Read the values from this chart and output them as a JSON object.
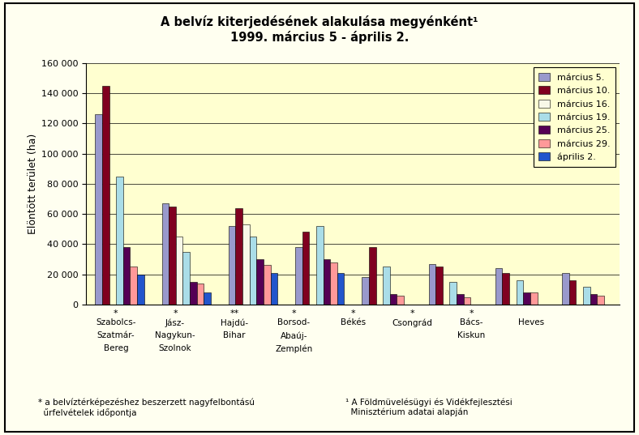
{
  "title_line1": "A belvíz kiterjedésének alakulása megyénként¹",
  "title_line2": "1999. március 5 - április 2.",
  "ylabel": "Elöntött terület (ha)",
  "background_color": "#FFFFF0",
  "plot_bg_color": "#FFFFD0",
  "categories": [
    "Szabolcs-\nSzatmár-\nBereg",
    "Jász-\nNagykun-\nSzolnok",
    "Hajdú-\nBihar",
    "Borsod-\nAbaúj-\nZemplén",
    "Békés",
    "Csongrád",
    "Bács-\nKiskun",
    "Heves"
  ],
  "stars": [
    "*",
    "*",
    "**",
    "*",
    "*",
    "*",
    "*",
    ""
  ],
  "series": [
    {
      "label": "március 5.",
      "color": "#9999CC",
      "values": [
        126000,
        67000,
        52000,
        38000,
        18000,
        27000,
        24000,
        21000
      ]
    },
    {
      "label": "március 10.",
      "color": "#800020",
      "values": [
        145000,
        65000,
        64000,
        48000,
        38000,
        25000,
        21000,
        16000
      ]
    },
    {
      "label": "március 16.",
      "color": "#F8F8E8",
      "values": [
        0,
        45000,
        53000,
        0,
        0,
        0,
        0,
        0
      ]
    },
    {
      "label": "március 19.",
      "color": "#AADDE8",
      "values": [
        85000,
        35000,
        45000,
        52000,
        25000,
        15000,
        16000,
        12000
      ]
    },
    {
      "label": "március 25.",
      "color": "#550055",
      "values": [
        38000,
        15000,
        30000,
        30000,
        7000,
        7000,
        8000,
        7000
      ]
    },
    {
      "label": "március 29.",
      "color": "#FF9999",
      "values": [
        25000,
        14000,
        26000,
        28000,
        6000,
        5000,
        8000,
        6000
      ]
    },
    {
      "label": "április 2.",
      "color": "#2255CC",
      "values": [
        20000,
        8000,
        21000,
        21000,
        0,
        0,
        0,
        0
      ]
    }
  ],
  "ylim": [
    0,
    160000
  ],
  "yticks": [
    0,
    20000,
    40000,
    60000,
    80000,
    100000,
    120000,
    140000,
    160000
  ],
  "footnote_left": "* a belvíztérképezéshez beszerzett nagyfelbontású\n  űrfelvételek időpontja",
  "footnote_right": "¹ A Földmüvelésügyi és Vidékfejlesztési\n  Minisztérium adatai alapján"
}
